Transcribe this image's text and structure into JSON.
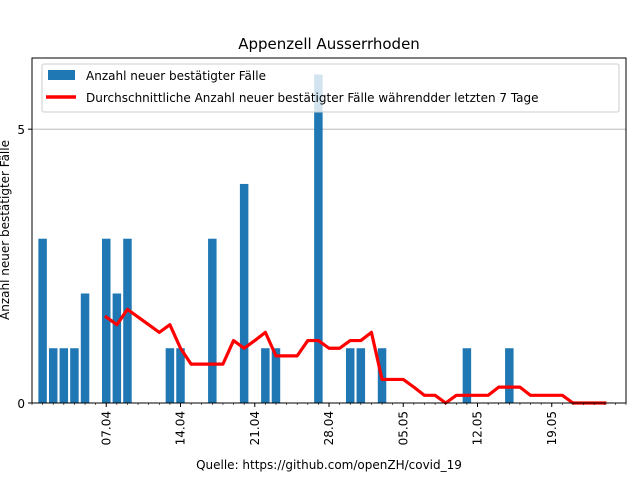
{
  "chart_data": {
    "type": "bar",
    "title": "Appenzell Ausserrhoden",
    "xlabel": "Quelle: https://github.com/openZH/covid_19",
    "ylabel": "Anzahl neuer bestätigter Fälle",
    "ylim": [
      0,
      6.3
    ],
    "yticks": [
      0,
      5
    ],
    "grid": "horizontal",
    "legend_position": "top-left",
    "x_start": "2020-03-31",
    "x_end": "2020-05-26",
    "xticks": [
      {
        "date": "2020-04-07",
        "label": "07.04"
      },
      {
        "date": "2020-04-14",
        "label": "14.04"
      },
      {
        "date": "2020-04-21",
        "label": "21.04"
      },
      {
        "date": "2020-04-28",
        "label": "28.04"
      },
      {
        "date": "2020-05-05",
        "label": "05.05"
      },
      {
        "date": "2020-05-12",
        "label": "12.05"
      },
      {
        "date": "2020-05-19",
        "label": "19.05"
      }
    ],
    "series": [
      {
        "name": "Anzahl neuer bestätigter Fälle",
        "type": "bar",
        "color": "#1f77b4",
        "points": [
          {
            "x": "2020-04-01",
            "y": 3
          },
          {
            "x": "2020-04-02",
            "y": 1
          },
          {
            "x": "2020-04-03",
            "y": 1
          },
          {
            "x": "2020-04-04",
            "y": 1
          },
          {
            "x": "2020-04-05",
            "y": 2
          },
          {
            "x": "2020-04-07",
            "y": 3
          },
          {
            "x": "2020-04-08",
            "y": 2
          },
          {
            "x": "2020-04-09",
            "y": 3
          },
          {
            "x": "2020-04-13",
            "y": 1
          },
          {
            "x": "2020-04-14",
            "y": 1
          },
          {
            "x": "2020-04-17",
            "y": 3
          },
          {
            "x": "2020-04-20",
            "y": 4
          },
          {
            "x": "2020-04-22",
            "y": 1
          },
          {
            "x": "2020-04-23",
            "y": 1
          },
          {
            "x": "2020-04-27",
            "y": 6
          },
          {
            "x": "2020-04-30",
            "y": 1
          },
          {
            "x": "2020-05-01",
            "y": 1
          },
          {
            "x": "2020-05-03",
            "y": 1
          },
          {
            "x": "2020-05-11",
            "y": 1
          },
          {
            "x": "2020-05-15",
            "y": 1
          }
        ]
      },
      {
        "name": "Durchschnittliche Anzahl neuer bestätigter Fälle währendder letzten 7 Tage",
        "type": "line",
        "color": "#ff0000",
        "points": [
          {
            "x": "2020-04-07",
            "y": 1.57
          },
          {
            "x": "2020-04-08",
            "y": 1.43
          },
          {
            "x": "2020-04-09",
            "y": 1.71
          },
          {
            "x": "2020-04-10",
            "y": 1.57
          },
          {
            "x": "2020-04-11",
            "y": 1.43
          },
          {
            "x": "2020-04-12",
            "y": 1.29
          },
          {
            "x": "2020-04-13",
            "y": 1.43
          },
          {
            "x": "2020-04-14",
            "y": 1.0
          },
          {
            "x": "2020-04-15",
            "y": 0.71
          },
          {
            "x": "2020-04-16",
            "y": 0.71
          },
          {
            "x": "2020-04-17",
            "y": 0.71
          },
          {
            "x": "2020-04-18",
            "y": 0.71
          },
          {
            "x": "2020-04-19",
            "y": 1.14
          },
          {
            "x": "2020-04-20",
            "y": 1.0
          },
          {
            "x": "2020-04-21",
            "y": 1.14
          },
          {
            "x": "2020-04-22",
            "y": 1.29
          },
          {
            "x": "2020-04-23",
            "y": 0.86
          },
          {
            "x": "2020-04-24",
            "y": 0.86
          },
          {
            "x": "2020-04-25",
            "y": 0.86
          },
          {
            "x": "2020-04-26",
            "y": 1.14
          },
          {
            "x": "2020-04-27",
            "y": 1.14
          },
          {
            "x": "2020-04-28",
            "y": 1.0
          },
          {
            "x": "2020-04-29",
            "y": 1.0
          },
          {
            "x": "2020-04-30",
            "y": 1.14
          },
          {
            "x": "2020-05-01",
            "y": 1.14
          },
          {
            "x": "2020-05-02",
            "y": 1.29
          },
          {
            "x": "2020-05-03",
            "y": 0.43
          },
          {
            "x": "2020-05-04",
            "y": 0.43
          },
          {
            "x": "2020-05-05",
            "y": 0.43
          },
          {
            "x": "2020-05-06",
            "y": 0.29
          },
          {
            "x": "2020-05-07",
            "y": 0.14
          },
          {
            "x": "2020-05-08",
            "y": 0.14
          },
          {
            "x": "2020-05-09",
            "y": 0.0
          },
          {
            "x": "2020-05-10",
            "y": 0.14
          },
          {
            "x": "2020-05-11",
            "y": 0.14
          },
          {
            "x": "2020-05-12",
            "y": 0.14
          },
          {
            "x": "2020-05-13",
            "y": 0.14
          },
          {
            "x": "2020-05-14",
            "y": 0.29
          },
          {
            "x": "2020-05-15",
            "y": 0.29
          },
          {
            "x": "2020-05-16",
            "y": 0.29
          },
          {
            "x": "2020-05-17",
            "y": 0.14
          },
          {
            "x": "2020-05-18",
            "y": 0.14
          },
          {
            "x": "2020-05-19",
            "y": 0.14
          },
          {
            "x": "2020-05-20",
            "y": 0.14
          },
          {
            "x": "2020-05-21",
            "y": 0.0
          },
          {
            "x": "2020-05-22",
            "y": 0.0
          },
          {
            "x": "2020-05-23",
            "y": 0.0
          },
          {
            "x": "2020-05-24",
            "y": 0.0
          }
        ]
      }
    ]
  }
}
